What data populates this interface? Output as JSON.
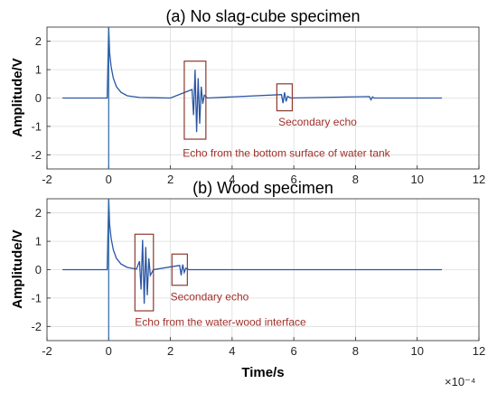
{
  "chart_data": [
    {
      "type": "line",
      "title": "(a) No slag-cube specimen",
      "xlabel": "",
      "ylabel": "Amplitude/V",
      "xlim": [
        -2,
        12
      ],
      "ylim": [
        -2.5,
        2.5
      ],
      "x_ticks": [
        "-2",
        "0",
        "2",
        "4",
        "6",
        "8",
        "10",
        "12"
      ],
      "y_ticks": [
        "2",
        "1",
        "0",
        "-1",
        "-2"
      ],
      "grid": true,
      "series": [
        {
          "x": [
            -1.5,
            -0.05,
            0.0,
            0.03,
            0.08,
            0.15,
            0.25,
            0.4,
            0.6,
            1.0,
            1.5,
            2.0,
            2.7,
            2.75,
            2.8,
            2.85,
            2.9,
            2.95,
            3.0,
            3.05,
            3.1,
            3.2,
            5.6,
            5.65,
            5.7,
            5.75,
            5.8,
            5.9,
            8.45,
            8.5,
            8.55,
            8.6,
            10.8
          ],
          "values": [
            0.0,
            0.0,
            2.5,
            1.6,
            1.1,
            0.7,
            0.4,
            0.2,
            0.08,
            0.02,
            0.01,
            0.0,
            0.3,
            -0.6,
            1.0,
            -1.2,
            0.7,
            -0.9,
            0.4,
            -0.2,
            0.1,
            0.0,
            0.12,
            -0.18,
            0.2,
            -0.12,
            0.06,
            0.0,
            0.05,
            -0.06,
            0.04,
            0.0,
            0.0
          ]
        }
      ],
      "spike": {
        "x": 0.0,
        "ymin": -2.5,
        "ymax": 2.5
      },
      "annotations": [
        {
          "text": "Secondary echo",
          "x": 5.5,
          "y": -0.85
        },
        {
          "text": "Echo from the bottom surface of water tank",
          "x": 2.4,
          "y": -1.95
        }
      ],
      "boxes": [
        {
          "x0": 2.45,
          "x1": 3.15,
          "y0": -1.45,
          "y1": 1.3
        },
        {
          "x0": 5.45,
          "x1": 5.95,
          "y0": -0.45,
          "y1": 0.5
        }
      ]
    },
    {
      "type": "line",
      "title": "(b) Wood specimen",
      "xlabel": "Time/s",
      "ylabel": "Amplitude/V",
      "xlim": [
        -2,
        12
      ],
      "ylim": [
        -2.5,
        2.5
      ],
      "x_ticks": [
        "-2",
        "0",
        "2",
        "4",
        "6",
        "8",
        "10",
        "12"
      ],
      "y_ticks": [
        "2",
        "1",
        "0",
        "-1",
        "-2"
      ],
      "grid": true,
      "axis_exponent": "×10⁻⁴",
      "series": [
        {
          "x": [
            -1.5,
            -0.05,
            0.0,
            0.03,
            0.08,
            0.15,
            0.25,
            0.4,
            0.6,
            0.9,
            1.0,
            1.05,
            1.1,
            1.15,
            1.2,
            1.25,
            1.3,
            1.35,
            1.45,
            2.3,
            2.35,
            2.4,
            2.45,
            2.5,
            2.6,
            10.8
          ],
          "values": [
            0.0,
            0.0,
            2.5,
            1.6,
            1.1,
            0.7,
            0.4,
            0.2,
            0.08,
            0.02,
            0.3,
            -0.7,
            1.05,
            -1.2,
            0.8,
            -0.9,
            0.4,
            -0.2,
            0.0,
            0.15,
            -0.2,
            0.18,
            -0.1,
            0.05,
            0.0,
            0.0
          ]
        }
      ],
      "spike": {
        "x": 0.0,
        "ymin": -2.5,
        "ymax": 2.5
      },
      "annotations": [
        {
          "text": "Secondary echo",
          "x": 2.0,
          "y": -0.95
        },
        {
          "text": "Echo from the water-wood interface",
          "x": 0.85,
          "y": -1.85
        }
      ],
      "boxes": [
        {
          "x0": 0.85,
          "x1": 1.45,
          "y0": -1.45,
          "y1": 1.25
        },
        {
          "x0": 2.05,
          "x1": 2.55,
          "y0": -0.55,
          "y1": 0.55
        }
      ]
    }
  ]
}
